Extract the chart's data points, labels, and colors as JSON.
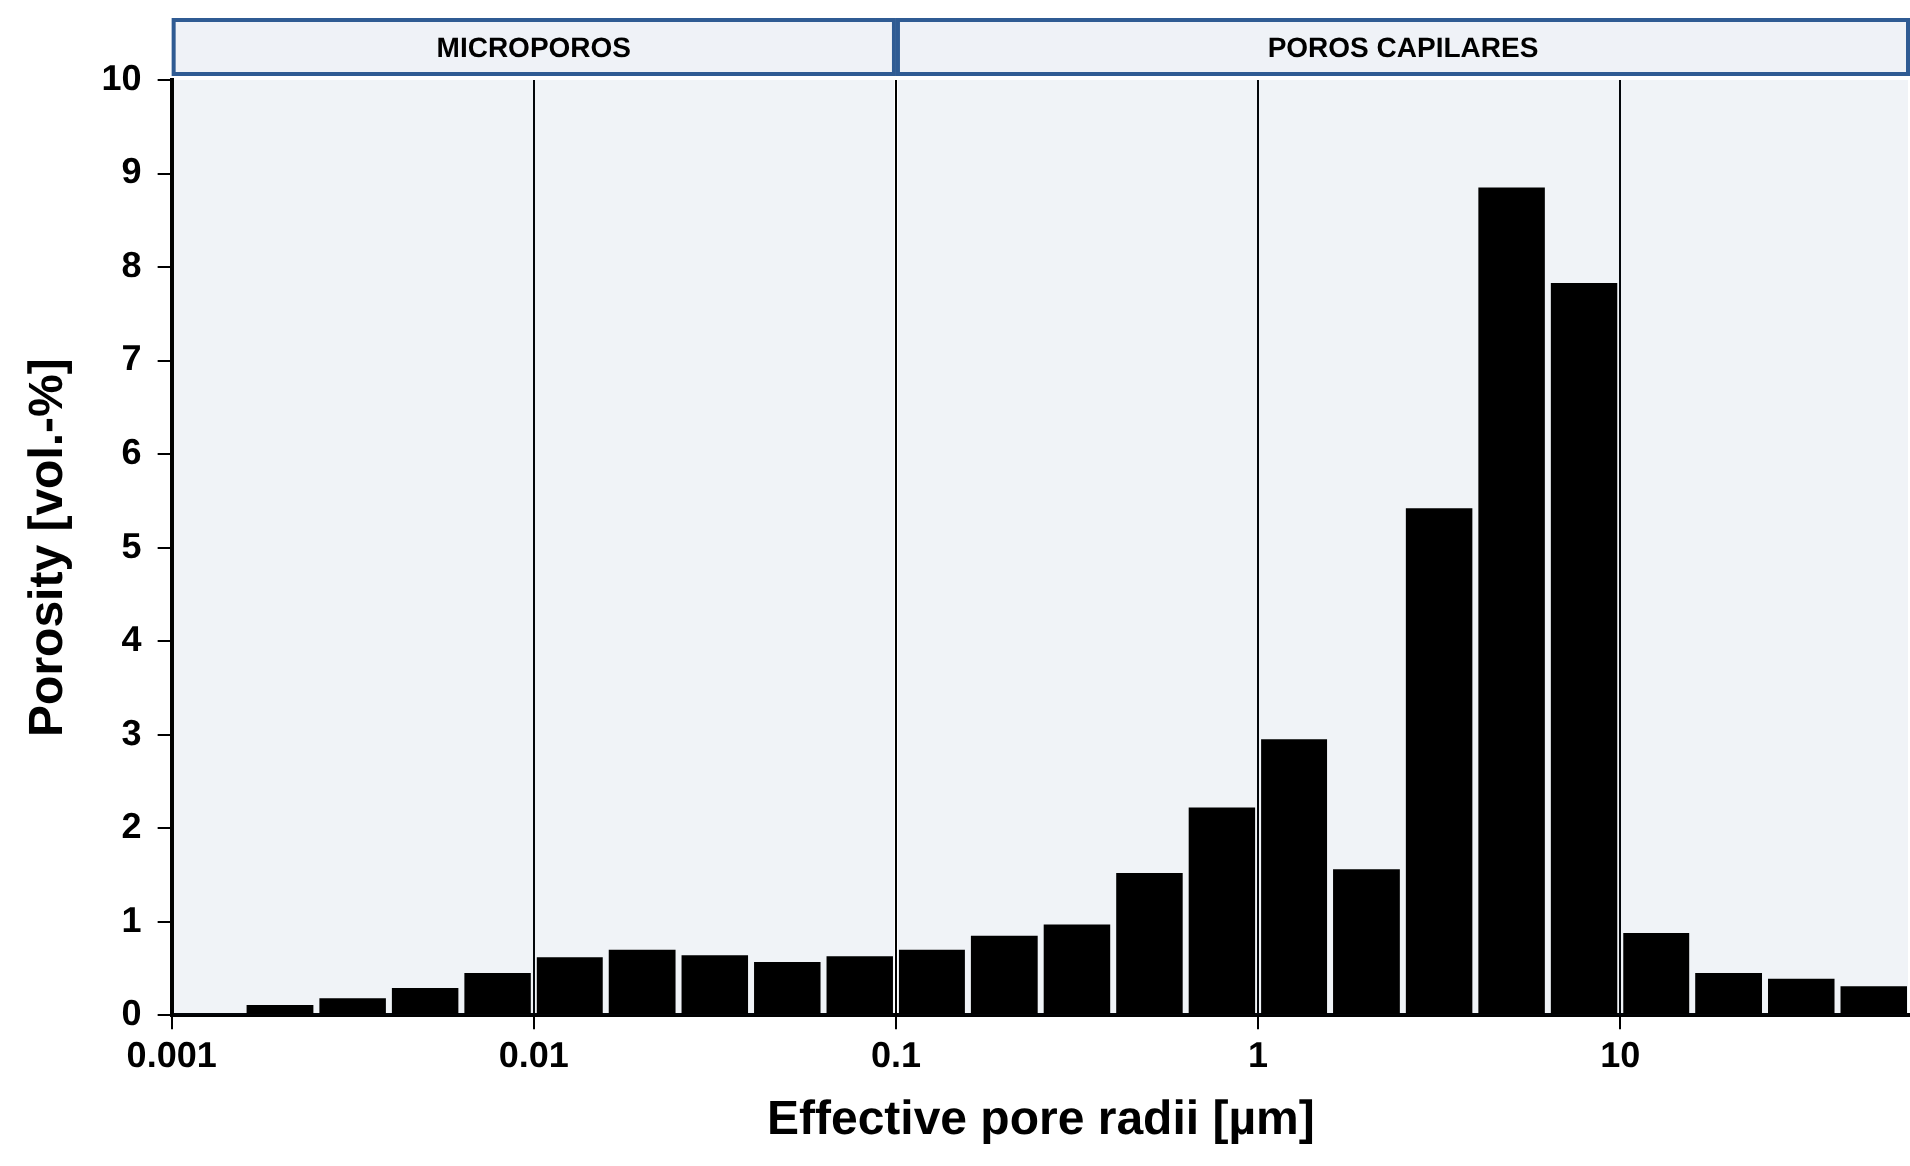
{
  "chart_data": {
    "type": "histogram",
    "xlabel": "Effective pore radii [µm]",
    "ylabel": "Porosity [vol.-%]",
    "bins": [
      0.00158,
      0.00251,
      0.00398,
      0.00631,
      0.01,
      0.0158,
      0.0251,
      0.0398,
      0.0631,
      0.1,
      0.158,
      0.251,
      0.398,
      0.631,
      1,
      1.58,
      2.51,
      3.98,
      6.31,
      10,
      15.8,
      25.1,
      39.8,
      63.1
    ],
    "values": [
      0.11,
      0.18,
      0.29,
      0.45,
      0.62,
      0.7,
      0.64,
      0.57,
      0.63,
      0.7,
      0.85,
      0.97,
      1.52,
      2.22,
      2.95,
      1.56,
      5.42,
      8.85,
      7.83,
      0.88,
      0.45,
      0.39,
      0.31
    ],
    "color": "#000000",
    "log": "x",
    "xlim": [
      0.001,
      63.1
    ],
    "xticks": [
      0.001,
      0.01,
      0.1,
      1,
      10
    ],
    "ylim": [
      0,
      10
    ],
    "yticks": [
      0,
      1,
      2,
      3,
      4,
      5,
      6,
      7,
      8,
      9,
      10
    ],
    "grid": "x",
    "legend": false,
    "bands": [
      {
        "axis": "x",
        "from": 0.001,
        "to": 0.1,
        "label": "MICROPOROS",
        "color": "#2f5b93"
      },
      {
        "axis": "x",
        "from": 0.1,
        "to": 63.1,
        "label": "POROS CAPILARES",
        "color": "#2f5b93"
      }
    ]
  }
}
